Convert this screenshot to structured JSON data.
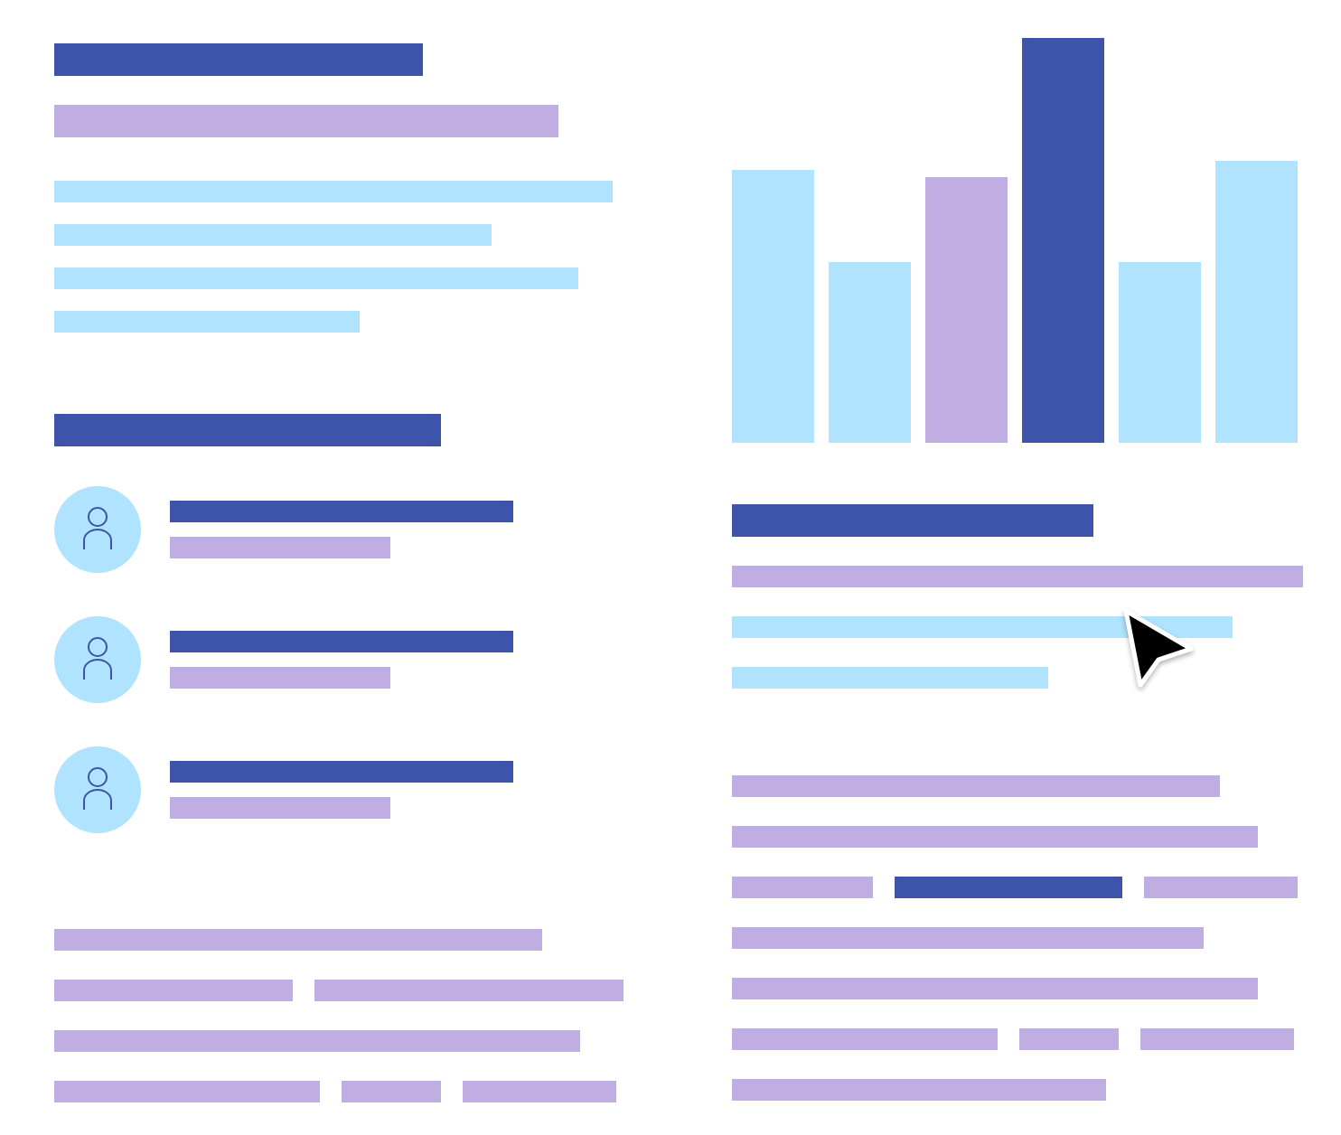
{
  "palette": {
    "dark": "#3e54aa",
    "lilac": "#c0aee3",
    "sky": "#b0e3fd",
    "background": "#ffffff"
  },
  "icons": {
    "avatar": "user-icon",
    "pointer": "cursor-arrow-icon"
  },
  "chart_data": {
    "type": "bar",
    "categories": [
      "",
      "",
      "",
      "",
      "",
      ""
    ],
    "values": [
      302,
      200,
      294,
      448,
      200,
      312
    ],
    "colors": [
      "#b0e3fd",
      "#b0e3fd",
      "#c0aee3",
      "#3e54aa",
      "#b0e3fd",
      "#b0e3fd"
    ],
    "ylim": [
      0,
      448
    ],
    "grid": false,
    "legend": "none",
    "title": "",
    "xlabel": "",
    "ylabel": ""
  }
}
